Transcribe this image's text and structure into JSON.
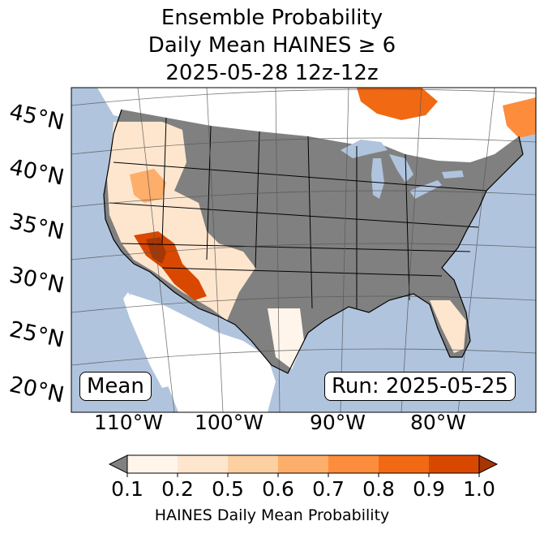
{
  "title": {
    "line1": "Ensemble Probability",
    "line2": "Daily Mean HAINES ≥ 6",
    "line3": "2025-05-28 12z-12z"
  },
  "map": {
    "ocean_color": "#b0c4de",
    "nodata_color": "#808080",
    "land_color": "#ffffff",
    "lat_labels": [
      "45°N",
      "40°N",
      "35°N",
      "30°N",
      "25°N",
      "20°N"
    ],
    "lon_labels": [
      "110°W",
      "100°W",
      "90°W",
      "80°W"
    ],
    "mean_box": "Mean",
    "run_box": "Run: 2025-05-25"
  },
  "colorbar": {
    "ticks": [
      "0.1",
      "0.2",
      "0.5",
      "0.6",
      "0.7",
      "0.8",
      "0.9",
      "1.0"
    ],
    "colors": [
      "#fff5eb",
      "#fee6ce",
      "#fdd0a2",
      "#fdae6b",
      "#fd8d3c",
      "#f16913",
      "#d94801",
      "#a63603"
    ],
    "under_color": "#808080",
    "label": "HAINES Daily Mean Probability"
  }
}
